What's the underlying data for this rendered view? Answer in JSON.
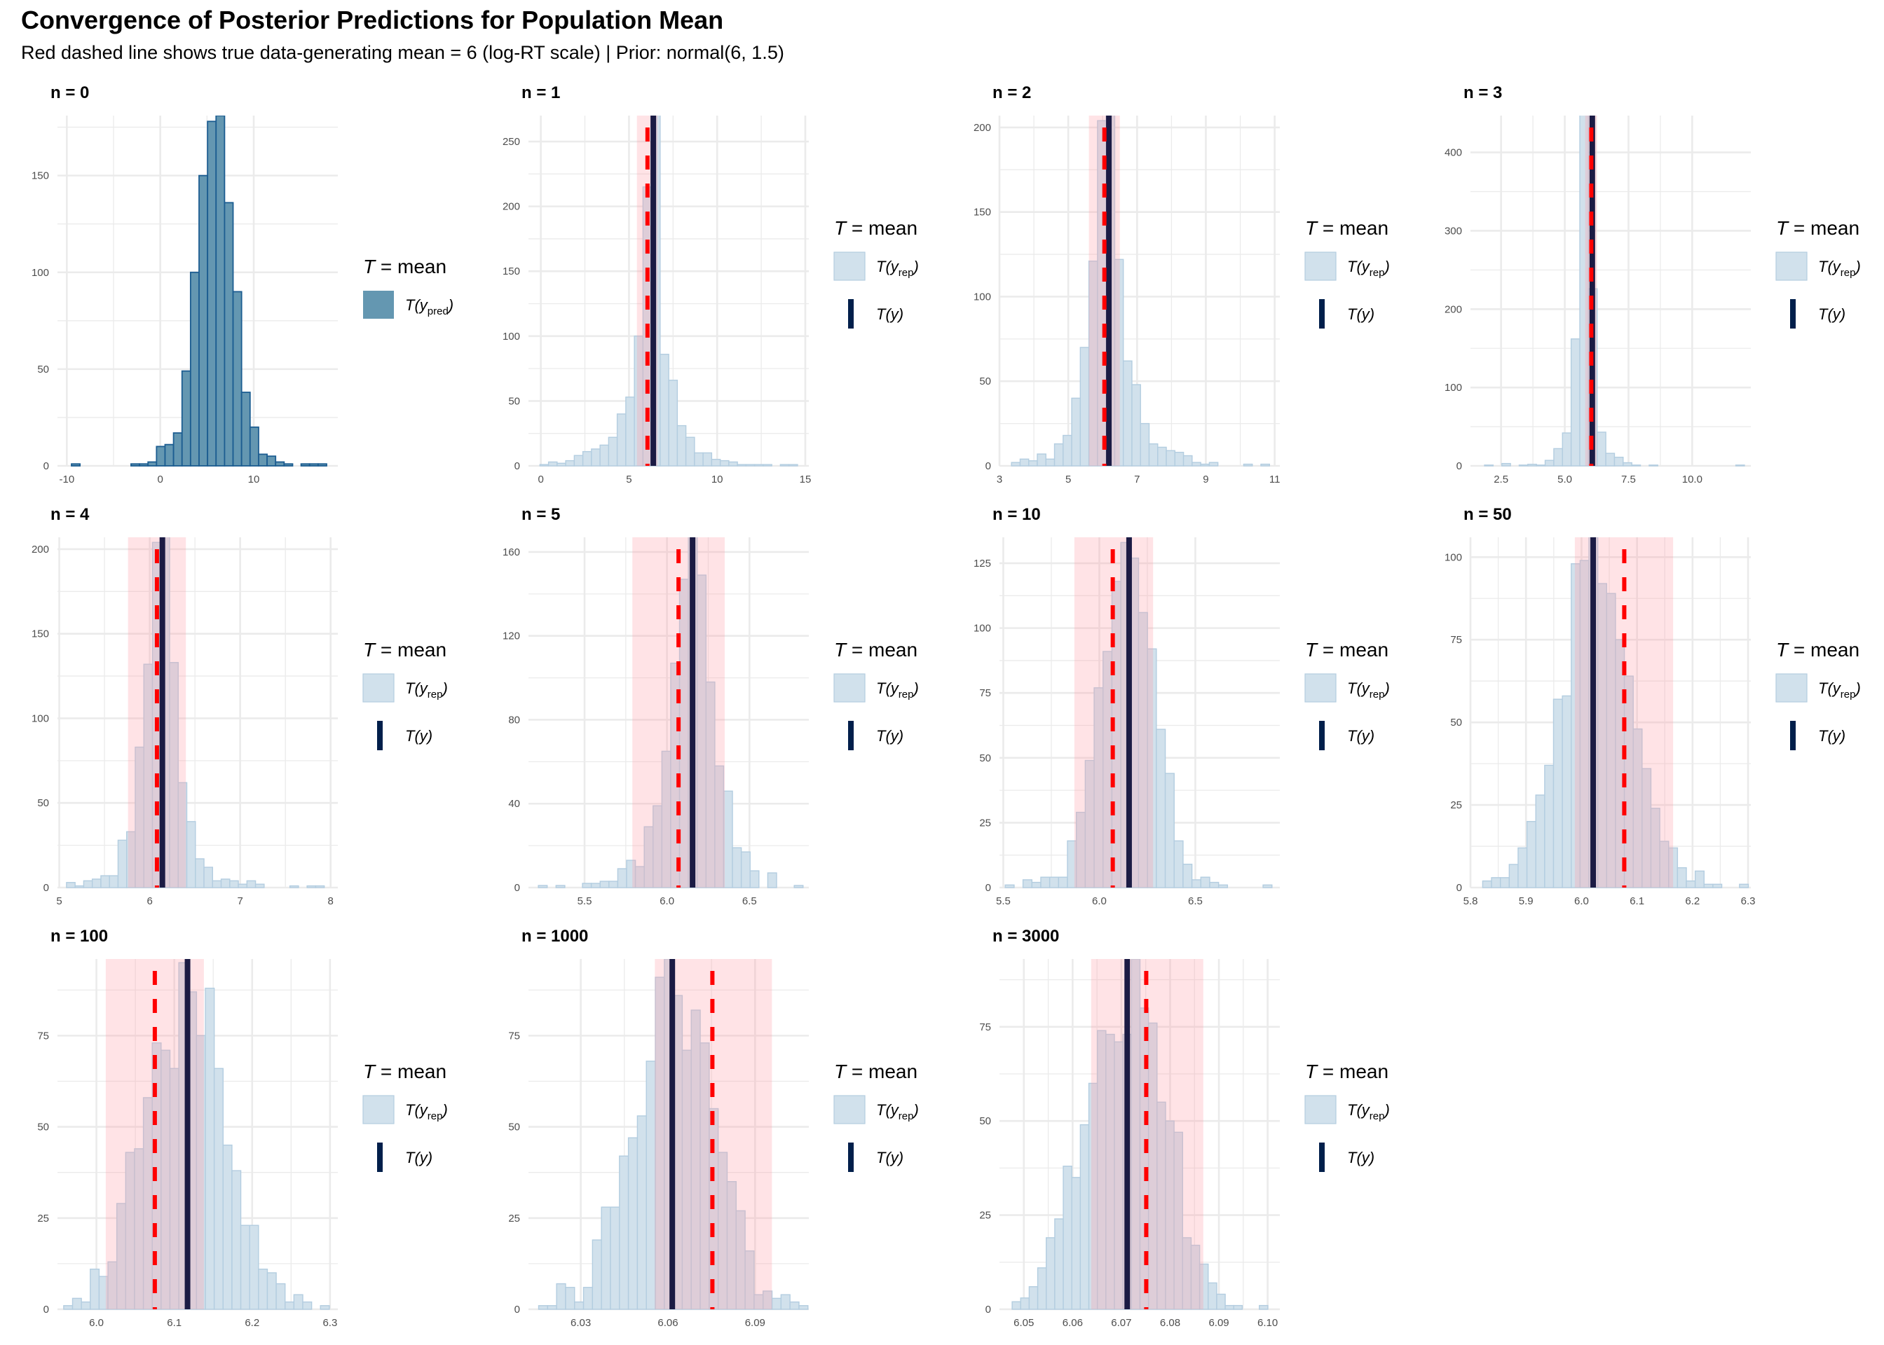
{
  "title": "Convergence of Posterior Predictions for Population Mean",
  "subtitle": "Red dashed line shows true data-generating mean = 6 (log-RT scale) | Prior: normal(6, 1.5)",
  "colors": {
    "prior_fill": "#6497b1",
    "prior_edge": "#1c5d91",
    "rep_fill": "#d1e1ec",
    "rep_edge": "#b3cde0",
    "ty_line": "#1b1b44",
    "ty_legend": "#011f4b",
    "true_mean": "#ff0000",
    "band": "#ffdfe2",
    "grid": "#ebebeb"
  },
  "legend": {
    "title_italic": "T",
    "title_rest": " = mean",
    "prior_label": "T(y",
    "prior_sub": "pred",
    "rep_label": "T(y",
    "rep_sub": "rep",
    "obs_label": "T(y)"
  },
  "chart_data": [
    {
      "type": "bar",
      "panel": "n = 0",
      "kind": "prior",
      "bin_start": -9.5,
      "bin_width": 0.91,
      "values": [
        1,
        0,
        0,
        0,
        0,
        0,
        0,
        1,
        1,
        2,
        10,
        11,
        17,
        49,
        100,
        150,
        178,
        181,
        136,
        90,
        38,
        20,
        6,
        5,
        2,
        1,
        0,
        1,
        1,
        1
      ],
      "xlim": [
        -11,
        19
      ],
      "xticks": [
        -10,
        0,
        10
      ],
      "xtick_labels": [
        "-10",
        "0",
        "10"
      ],
      "ylim": [
        0,
        181
      ],
      "yticks": [
        0,
        50,
        100,
        150
      ],
      "yminor": [
        25,
        75,
        125,
        175
      ]
    },
    {
      "type": "bar",
      "panel": "n = 1",
      "kind": "rep",
      "bin_start": -0.05,
      "bin_width": 0.487,
      "values": [
        1,
        3,
        2,
        4,
        8,
        11,
        13,
        16,
        22,
        40,
        53,
        100,
        215,
        275,
        86,
        66,
        31,
        22,
        10,
        10,
        5,
        4,
        3,
        1,
        1,
        1,
        1,
        0,
        1,
        1
      ],
      "xlim": [
        -0.7,
        15.2
      ],
      "xticks": [
        0,
        5,
        10,
        15
      ],
      "xtick_labels": [
        "0",
        "5",
        "10",
        "15"
      ],
      "ylim": [
        0,
        270
      ],
      "yticks": [
        0,
        50,
        100,
        150,
        200,
        250
      ],
      "yminor": [
        25,
        75,
        125,
        175,
        225
      ],
      "t_y": 6.38,
      "true_mean": 6.05,
      "band": [
        5.45,
        6.62
      ]
    },
    {
      "type": "bar",
      "panel": "n = 2",
      "kind": "rep",
      "bin_start": 3.35,
      "bin_width": 0.25,
      "values": [
        2,
        4,
        3,
        7,
        4,
        13,
        18,
        40,
        70,
        121,
        204,
        215,
        122,
        62,
        48,
        25,
        13,
        11,
        9,
        8,
        6,
        2,
        1,
        2,
        0,
        0,
        0,
        1,
        0,
        1
      ],
      "xlim": [
        3,
        11.15
      ],
      "xticks": [
        3,
        5,
        7,
        9,
        11
      ],
      "xtick_labels": [
        "3",
        "5",
        "7",
        "9",
        "11"
      ],
      "ylim": [
        0,
        207
      ],
      "yticks": [
        0,
        50,
        100,
        150,
        200
      ],
      "yminor": [
        25,
        75,
        125,
        175
      ],
      "t_y": 6.18,
      "true_mean": 6.05,
      "band": [
        5.6,
        6.5
      ]
    },
    {
      "type": "bar",
      "panel": "n = 3",
      "kind": "rep",
      "bin_start": 1.85,
      "bin_width": 0.34,
      "values": [
        1,
        0,
        3,
        0,
        1,
        2,
        1,
        7,
        22,
        42,
        162,
        450,
        226,
        43,
        16,
        11,
        4,
        1,
        0,
        1,
        0,
        0,
        0,
        0,
        0,
        0,
        0,
        0,
        0,
        1
      ],
      "xlim": [
        1.3,
        12.3
      ],
      "xticks": [
        2.5,
        5.0,
        7.5,
        10.0
      ],
      "xtick_labels": [
        "2.5",
        "5.0",
        "7.5",
        "10.0"
      ],
      "ylim": [
        0,
        447
      ],
      "yticks": [
        0,
        100,
        200,
        300,
        400
      ],
      "yminor": [
        50,
        150,
        250,
        350
      ],
      "t_y": 6.08,
      "true_mean": 6.04,
      "band": [
        5.8,
        6.25
      ]
    },
    {
      "type": "bar",
      "panel": "n = 4",
      "kind": "rep",
      "bin_start": 5.08,
      "bin_width": 0.095,
      "values": [
        3,
        1,
        4,
        5,
        7,
        7,
        28,
        33,
        83,
        132,
        204,
        210,
        133,
        62,
        39,
        17,
        12,
        4,
        5,
        4,
        2,
        4,
        2,
        0,
        0,
        0,
        1,
        0,
        1,
        1
      ],
      "xlim": [
        4.98,
        8.08
      ],
      "xticks": [
        5,
        6,
        7,
        8
      ],
      "xtick_labels": [
        "5",
        "6",
        "7",
        "8"
      ],
      "ylim": [
        0,
        207
      ],
      "yticks": [
        0,
        50,
        100,
        150,
        200
      ],
      "yminor": [
        25,
        75,
        125,
        175
      ],
      "t_y": 6.14,
      "true_mean": 6.08,
      "band": [
        5.76,
        6.4
      ]
    },
    {
      "type": "bar",
      "panel": "n = 5",
      "kind": "rep",
      "bin_start": 5.22,
      "bin_width": 0.0535,
      "values": [
        1,
        0,
        1,
        0,
        0,
        2,
        2,
        3,
        3,
        9,
        13,
        10,
        29,
        39,
        65,
        107,
        147,
        168,
        149,
        98,
        58,
        46,
        19,
        17,
        8,
        0,
        7,
        0,
        0,
        1
      ],
      "xlim": [
        5.16,
        6.86
      ],
      "xticks": [
        5.5,
        6.0,
        6.5
      ],
      "xtick_labels": [
        "5.5",
        "6.0",
        "6.5"
      ],
      "ylim": [
        0,
        167
      ],
      "yticks": [
        0,
        40,
        80,
        120,
        160
      ],
      "yminor": [
        20,
        60,
        100,
        140
      ],
      "t_y": 6.155,
      "true_mean": 6.07,
      "band": [
        5.79,
        6.35
      ]
    },
    {
      "type": "bar",
      "panel": "n = 10",
      "kind": "rep",
      "bin_start": 5.51,
      "bin_width": 0.0463,
      "values": [
        1,
        0,
        3,
        2,
        4,
        4,
        4,
        18,
        29,
        49,
        77,
        91,
        118,
        133,
        127,
        106,
        92,
        61,
        44,
        18,
        9,
        3,
        4,
        2,
        1,
        0,
        0,
        0,
        0,
        1
      ],
      "xlim": [
        5.48,
        6.94
      ],
      "xticks": [
        5.5,
        6.0,
        6.5
      ],
      "xtick_labels": [
        "5.5",
        "6.0",
        "6.5"
      ],
      "ylim": [
        0,
        135
      ],
      "yticks": [
        0,
        25,
        50,
        75,
        100,
        125
      ],
      "yminor": [
        12.5,
        37.5,
        62.5,
        87.5,
        112.5
      ],
      "t_y": 6.155,
      "true_mean": 6.07,
      "band": [
        5.87,
        6.28
      ]
    },
    {
      "type": "bar",
      "panel": "n = 50",
      "kind": "rep",
      "bin_start": 5.822,
      "bin_width": 0.01595,
      "values": [
        2,
        3,
        3,
        7,
        12,
        20,
        28,
        37,
        57,
        58,
        98,
        99,
        106,
        92,
        89,
        75,
        64,
        48,
        36,
        24,
        14,
        12,
        6,
        2,
        5,
        1,
        1,
        0,
        0,
        1
      ],
      "xlim": [
        5.8,
        6.305
      ],
      "xticks": [
        5.8,
        5.9,
        6.0,
        6.1,
        6.2,
        6.3
      ],
      "xtick_labels": [
        "5.8",
        "5.9",
        "6.0",
        "6.1",
        "6.2",
        "6.3"
      ],
      "ylim": [
        0,
        106
      ],
      "yticks": [
        0,
        25,
        50,
        75,
        100
      ],
      "yminor": [
        12.5,
        37.5,
        62.5,
        87.5
      ],
      "t_y": 6.021,
      "true_mean": 6.077,
      "band": [
        5.988,
        6.165
      ]
    },
    {
      "type": "bar",
      "panel": "n = 100",
      "kind": "rep",
      "bin_start": 5.958,
      "bin_width": 0.01137,
      "values": [
        1,
        3,
        2,
        11,
        9,
        13,
        29,
        43,
        44,
        58,
        73,
        71,
        66,
        95,
        87,
        75,
        88,
        66,
        45,
        38,
        23,
        23,
        11,
        10,
        7,
        2,
        4,
        2,
        0,
        1
      ],
      "xlim": [
        5.95,
        6.31
      ],
      "xticks": [
        6.0,
        6.1,
        6.2,
        6.3
      ],
      "xtick_labels": [
        "6.0",
        "6.1",
        "6.2",
        "6.3"
      ],
      "ylim": [
        0,
        96
      ],
      "yticks": [
        0,
        25,
        50,
        75
      ],
      "yminor": [
        12.5,
        37.5,
        62.5,
        87.5
      ],
      "t_y": 6.117,
      "true_mean": 6.075,
      "band": [
        6.012,
        6.138
      ]
    },
    {
      "type": "bar",
      "panel": "n = 1000",
      "kind": "rep",
      "bin_start": 6.0155,
      "bin_width": 0.00309,
      "values": [
        1,
        1,
        7,
        6,
        2,
        6,
        19,
        28,
        28,
        42,
        47,
        53,
        68,
        91,
        96,
        86,
        71,
        82,
        73,
        55,
        43,
        35,
        27,
        16,
        4,
        5,
        3,
        4,
        2,
        1
      ],
      "xlim": [
        6.012,
        6.1085
      ],
      "xticks": [
        6.03,
        6.06,
        6.09
      ],
      "xtick_labels": [
        "6.03",
        "6.06",
        "6.09"
      ],
      "ylim": [
        0,
        96
      ],
      "yticks": [
        0,
        25,
        50,
        75
      ],
      "yminor": [
        12.5,
        37.5,
        62.5,
        87.5
      ],
      "t_y": 6.0615,
      "true_mean": 6.0753,
      "band": [
        6.0555,
        6.0958
      ]
    },
    {
      "type": "bar",
      "panel": "n = 3000",
      "kind": "rep",
      "bin_start": 6.0476,
      "bin_width": 0.001748,
      "values": [
        2,
        3,
        6,
        11,
        19,
        24,
        38,
        35,
        49,
        60,
        74,
        73,
        71,
        73,
        93,
        80,
        76,
        55,
        50,
        47,
        19,
        17,
        12,
        7,
        4,
        1,
        1,
        0,
        0,
        1
      ],
      "xlim": [
        6.045,
        6.1025
      ],
      "xticks": [
        6.05,
        6.06,
        6.07,
        6.08,
        6.09,
        6.1
      ],
      "xtick_labels": [
        "6.05",
        "6.06",
        "6.07",
        "6.08",
        "6.09",
        "6.10"
      ],
      "ylim": [
        0,
        93
      ],
      "yticks": [
        0,
        25,
        50,
        75
      ],
      "yminor": [
        12.5,
        37.5,
        62.5,
        87.5
      ],
      "t_y": 6.0712,
      "true_mean": 6.0751,
      "band": [
        6.0638,
        6.0868
      ]
    }
  ]
}
